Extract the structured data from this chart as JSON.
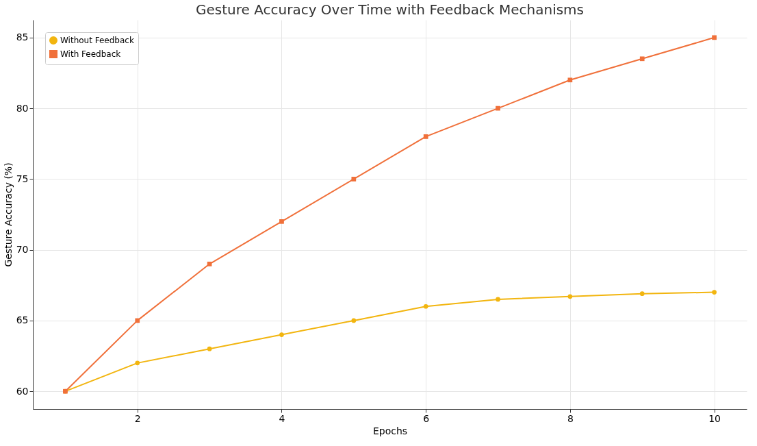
{
  "chart_data": {
    "type": "line",
    "title": "Gesture Accuracy Over Time with Feedback Mechanisms",
    "xlabel": "Epochs",
    "ylabel": "Gesture Accuracy (%)",
    "x": [
      1,
      2,
      3,
      4,
      5,
      6,
      7,
      8,
      9,
      10
    ],
    "series": [
      {
        "name": "Without Feedback",
        "color": "#f2b50f",
        "marker": "circle",
        "values": [
          60,
          62,
          63,
          64,
          65,
          66,
          66.5,
          66.7,
          66.9,
          67
        ]
      },
      {
        "name": "With Feedback",
        "color": "#f0703a",
        "marker": "square",
        "values": [
          60,
          65,
          69,
          72,
          75,
          78,
          80,
          82,
          83.5,
          85
        ]
      }
    ],
    "xlim": [
      0.55,
      10.45
    ],
    "xticks": [
      2,
      4,
      6,
      8,
      10
    ],
    "ylim": [
      58.75,
      86.25
    ],
    "yticks": [
      60,
      65,
      70,
      75,
      80,
      85
    ],
    "grid": true,
    "legend": "top left",
    "line_style": "solid"
  }
}
